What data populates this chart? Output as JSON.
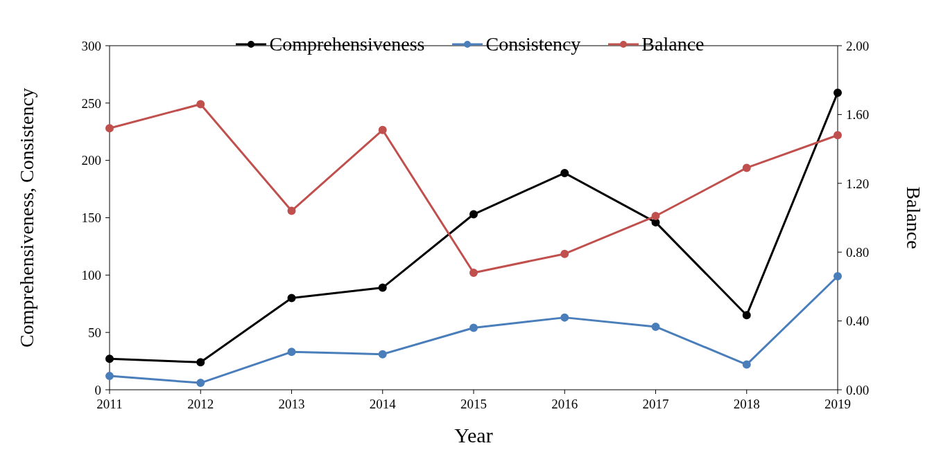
{
  "chart_data": {
    "type": "line",
    "xlabel": "Year",
    "ylabel": "Comprehensiveness, Consistency",
    "y2label": "Balance",
    "categories": [
      "2011",
      "2012",
      "2013",
      "2014",
      "2015",
      "2016",
      "2017",
      "2018",
      "2019"
    ],
    "series": [
      {
        "name": "Comprehensiveness",
        "color": "#000000",
        "values": [
          27,
          24,
          80,
          89,
          153,
          189,
          146,
          65,
          259
        ]
      },
      {
        "name": "Consistency",
        "color": "#4a7ebb",
        "values": [
          12,
          6,
          33,
          31,
          54,
          63,
          55,
          22,
          99
        ]
      },
      {
        "name": "Balance",
        "color": "#c0504d",
        "axis": "y2",
        "values": [
          1.52,
          1.66,
          1.04,
          1.51,
          0.68,
          0.79,
          1.01,
          1.29,
          1.48
        ]
      }
    ],
    "ylim": [
      0,
      300
    ],
    "yticks": [
      0,
      50,
      100,
      150,
      200,
      250,
      300
    ],
    "y2lim": [
      0,
      2
    ],
    "y2ticks": [
      {
        "value": 0,
        "label": "0.00"
      },
      {
        "value": 0.4,
        "label": "0.40"
      },
      {
        "value": 0.8,
        "label": "0.80"
      },
      {
        "value": 1.2,
        "label": "1.20"
      },
      {
        "value": 1.6,
        "label": "1.60"
      },
      {
        "value": 2,
        "label": "2.00"
      }
    ],
    "grid": false,
    "legend": "top",
    "marker": "circle",
    "line_style": "solid"
  }
}
